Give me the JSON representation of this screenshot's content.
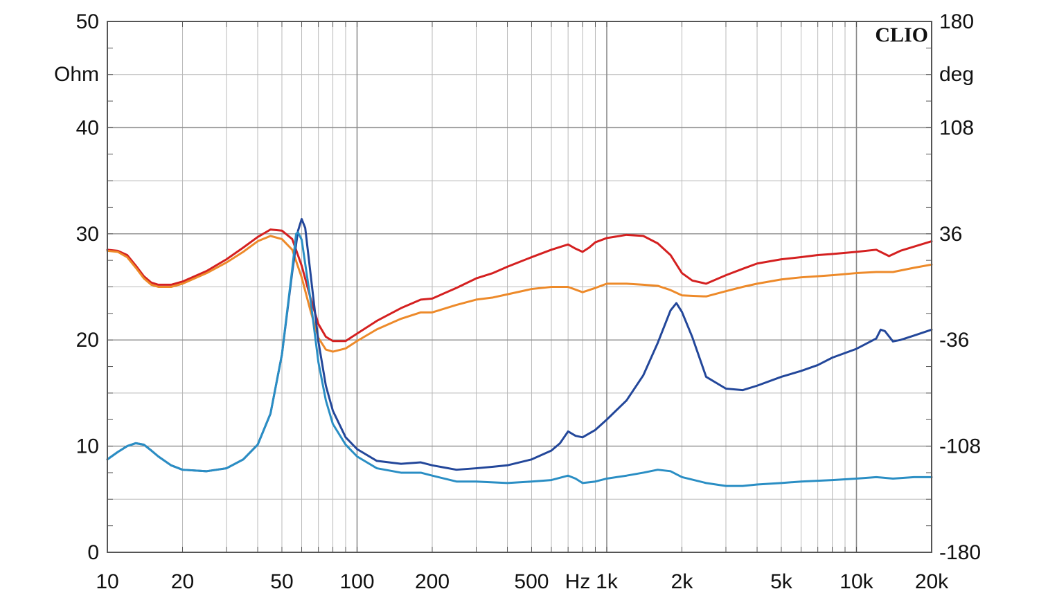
{
  "chart_data": {
    "type": "line",
    "brand": "CLIO",
    "x_scale": "log",
    "xlim": [
      10,
      20000
    ],
    "ylim_left": [
      0,
      50
    ],
    "ylim_right": [
      -180,
      180
    ],
    "left_unit": "Ohm",
    "right_unit": "deg",
    "x_unit": "Hz",
    "grid": true,
    "x_ticks": [
      {
        "value": 10,
        "label": "10"
      },
      {
        "value": 20,
        "label": "20"
      },
      {
        "value": 50,
        "label": "50"
      },
      {
        "value": 100,
        "label": "100"
      },
      {
        "value": 200,
        "label": "200"
      },
      {
        "value": 500,
        "label": "500"
      },
      {
        "value": 1000,
        "label": "1k"
      },
      {
        "value": 2000,
        "label": "2k"
      },
      {
        "value": 5000,
        "label": "5k"
      },
      {
        "value": 10000,
        "label": "10k"
      },
      {
        "value": 20000,
        "label": "20k"
      }
    ],
    "y_ticks_left": [
      {
        "value": 0,
        "label": "0"
      },
      {
        "value": 10,
        "label": "10"
      },
      {
        "value": 20,
        "label": "20"
      },
      {
        "value": 30,
        "label": "30"
      },
      {
        "value": 40,
        "label": "40"
      },
      {
        "value": 50,
        "label": "50"
      }
    ],
    "y_ticks_right": [
      {
        "value": -180,
        "label": "-180"
      },
      {
        "value": -108,
        "label": "-108"
      },
      {
        "value": -36,
        "label": "-36"
      },
      {
        "value": 36,
        "label": "36"
      },
      {
        "value": 108,
        "label": "108"
      },
      {
        "value": 180,
        "label": "180"
      }
    ],
    "series": [
      {
        "color": "#d42020",
        "axis": "left",
        "points": [
          [
            10,
            28.5
          ],
          [
            11,
            28.4
          ],
          [
            12,
            28
          ],
          [
            13,
            27
          ],
          [
            14,
            26
          ],
          [
            15,
            25.4
          ],
          [
            16,
            25.2
          ],
          [
            18,
            25.2
          ],
          [
            20,
            25.5
          ],
          [
            25,
            26.5
          ],
          [
            30,
            27.6
          ],
          [
            35,
            28.7
          ],
          [
            40,
            29.7
          ],
          [
            45,
            30.4
          ],
          [
            50,
            30.3
          ],
          [
            55,
            29.5
          ],
          [
            60,
            27
          ],
          [
            65,
            24
          ],
          [
            70,
            21.5
          ],
          [
            75,
            20.3
          ],
          [
            80,
            19.9
          ],
          [
            90,
            19.9
          ],
          [
            100,
            20.6
          ],
          [
            120,
            21.8
          ],
          [
            150,
            23
          ],
          [
            180,
            23.8
          ],
          [
            200,
            23.9
          ],
          [
            250,
            24.9
          ],
          [
            300,
            25.8
          ],
          [
            350,
            26.3
          ],
          [
            400,
            26.9
          ],
          [
            500,
            27.8
          ],
          [
            600,
            28.5
          ],
          [
            700,
            29
          ],
          [
            750,
            28.6
          ],
          [
            800,
            28.3
          ],
          [
            850,
            28.7
          ],
          [
            900,
            29.2
          ],
          [
            1000,
            29.6
          ],
          [
            1200,
            29.9
          ],
          [
            1400,
            29.8
          ],
          [
            1600,
            29.1
          ],
          [
            1800,
            28
          ],
          [
            2000,
            26.3
          ],
          [
            2200,
            25.6
          ],
          [
            2500,
            25.3
          ],
          [
            3000,
            26.1
          ],
          [
            3500,
            26.7
          ],
          [
            4000,
            27.2
          ],
          [
            5000,
            27.6
          ],
          [
            6000,
            27.8
          ],
          [
            7000,
            28
          ],
          [
            8000,
            28.1
          ],
          [
            10000,
            28.3
          ],
          [
            12000,
            28.5
          ],
          [
            13500,
            27.9
          ],
          [
            15000,
            28.4
          ],
          [
            20000,
            29.3
          ]
        ]
      },
      {
        "color": "#ed8a2a",
        "axis": "left",
        "points": [
          [
            10,
            28.4
          ],
          [
            11,
            28.3
          ],
          [
            12,
            27.8
          ],
          [
            13,
            26.8
          ],
          [
            14,
            25.8
          ],
          [
            15,
            25.2
          ],
          [
            16,
            25
          ],
          [
            18,
            25
          ],
          [
            20,
            25.3
          ],
          [
            25,
            26.3
          ],
          [
            30,
            27.3
          ],
          [
            35,
            28.3
          ],
          [
            40,
            29.3
          ],
          [
            45,
            29.8
          ],
          [
            50,
            29.5
          ],
          [
            55,
            28.5
          ],
          [
            60,
            25.9
          ],
          [
            65,
            22.8
          ],
          [
            70,
            20.2
          ],
          [
            75,
            19.1
          ],
          [
            80,
            18.9
          ],
          [
            90,
            19.2
          ],
          [
            100,
            19.9
          ],
          [
            120,
            21
          ],
          [
            150,
            22
          ],
          [
            180,
            22.6
          ],
          [
            200,
            22.6
          ],
          [
            250,
            23.3
          ],
          [
            300,
            23.8
          ],
          [
            350,
            24
          ],
          [
            400,
            24.3
          ],
          [
            500,
            24.8
          ],
          [
            600,
            25
          ],
          [
            700,
            25
          ],
          [
            800,
            24.5
          ],
          [
            900,
            24.9
          ],
          [
            1000,
            25.3
          ],
          [
            1200,
            25.3
          ],
          [
            1400,
            25.2
          ],
          [
            1600,
            25.1
          ],
          [
            1800,
            24.7
          ],
          [
            2000,
            24.2
          ],
          [
            2500,
            24.1
          ],
          [
            3000,
            24.6
          ],
          [
            3500,
            25
          ],
          [
            4000,
            25.3
          ],
          [
            5000,
            25.7
          ],
          [
            6000,
            25.9
          ],
          [
            7000,
            26
          ],
          [
            8000,
            26.1
          ],
          [
            10000,
            26.3
          ],
          [
            12000,
            26.4
          ],
          [
            14000,
            26.4
          ],
          [
            17000,
            26.8
          ],
          [
            20000,
            27.1
          ]
        ]
      },
      {
        "color": "#23479a",
        "axis": "right",
        "points": [
          [
            10,
            -117
          ],
          [
            11,
            -112
          ],
          [
            12,
            -108
          ],
          [
            13,
            -106
          ],
          [
            14,
            -107
          ],
          [
            15,
            -111
          ],
          [
            16,
            -115
          ],
          [
            18,
            -121
          ],
          [
            20,
            -124
          ],
          [
            25,
            -125
          ],
          [
            30,
            -123
          ],
          [
            35,
            -117
          ],
          [
            40,
            -107
          ],
          [
            45,
            -86
          ],
          [
            50,
            -46
          ],
          [
            55,
            10
          ],
          [
            58,
            38
          ],
          [
            60,
            46
          ],
          [
            62,
            40
          ],
          [
            65,
            10
          ],
          [
            70,
            -37
          ],
          [
            75,
            -67
          ],
          [
            80,
            -84
          ],
          [
            90,
            -102
          ],
          [
            100,
            -110
          ],
          [
            120,
            -118
          ],
          [
            150,
            -120
          ],
          [
            180,
            -119
          ],
          [
            200,
            -121
          ],
          [
            250,
            -124
          ],
          [
            300,
            -123
          ],
          [
            350,
            -122
          ],
          [
            400,
            -121
          ],
          [
            500,
            -117
          ],
          [
            600,
            -111
          ],
          [
            650,
            -106
          ],
          [
            700,
            -98
          ],
          [
            750,
            -101
          ],
          [
            800,
            -102
          ],
          [
            900,
            -97
          ],
          [
            1000,
            -90
          ],
          [
            1200,
            -77
          ],
          [
            1400,
            -60
          ],
          [
            1600,
            -38
          ],
          [
            1800,
            -16
          ],
          [
            1900,
            -11
          ],
          [
            2000,
            -17
          ],
          [
            2200,
            -34
          ],
          [
            2500,
            -61
          ],
          [
            3000,
            -69
          ],
          [
            3500,
            -70
          ],
          [
            4000,
            -67
          ],
          [
            5000,
            -61
          ],
          [
            6000,
            -57
          ],
          [
            7000,
            -53
          ],
          [
            8000,
            -48
          ],
          [
            10000,
            -42
          ],
          [
            12000,
            -35
          ],
          [
            12500,
            -29
          ],
          [
            13000,
            -30
          ],
          [
            14000,
            -37
          ],
          [
            15000,
            -36
          ],
          [
            17000,
            -33
          ],
          [
            20000,
            -29
          ]
        ]
      },
      {
        "color": "#2a8ec4",
        "axis": "right",
        "points": [
          [
            10,
            -117
          ],
          [
            11,
            -112
          ],
          [
            12,
            -108
          ],
          [
            13,
            -106
          ],
          [
            14,
            -107
          ],
          [
            15,
            -111
          ],
          [
            16,
            -115
          ],
          [
            18,
            -121
          ],
          [
            20,
            -124
          ],
          [
            25,
            -125
          ],
          [
            30,
            -123
          ],
          [
            35,
            -117
          ],
          [
            40,
            -107
          ],
          [
            45,
            -86
          ],
          [
            50,
            -46
          ],
          [
            55,
            12
          ],
          [
            57,
            36
          ],
          [
            58,
            37
          ],
          [
            60,
            32
          ],
          [
            65,
            -8
          ],
          [
            70,
            -51
          ],
          [
            75,
            -77
          ],
          [
            80,
            -93
          ],
          [
            90,
            -107
          ],
          [
            100,
            -115
          ],
          [
            120,
            -123
          ],
          [
            150,
            -126
          ],
          [
            180,
            -126
          ],
          [
            200,
            -128
          ],
          [
            250,
            -132
          ],
          [
            300,
            -132
          ],
          [
            400,
            -133
          ],
          [
            500,
            -132
          ],
          [
            600,
            -131
          ],
          [
            700,
            -128
          ],
          [
            750,
            -130
          ],
          [
            800,
            -133
          ],
          [
            900,
            -132
          ],
          [
            1000,
            -130
          ],
          [
            1200,
            -128
          ],
          [
            1400,
            -126
          ],
          [
            1600,
            -124
          ],
          [
            1800,
            -125
          ],
          [
            2000,
            -129
          ],
          [
            2500,
            -133
          ],
          [
            3000,
            -135
          ],
          [
            3500,
            -135
          ],
          [
            4000,
            -134
          ],
          [
            5000,
            -133
          ],
          [
            6000,
            -132
          ],
          [
            8000,
            -131
          ],
          [
            10000,
            -130
          ],
          [
            12000,
            -129
          ],
          [
            14000,
            -130
          ],
          [
            17000,
            -129
          ],
          [
            20000,
            -129
          ]
        ]
      }
    ]
  }
}
